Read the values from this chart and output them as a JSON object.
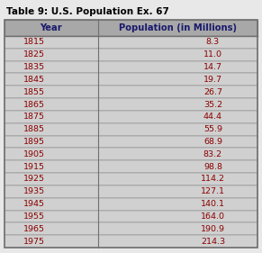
{
  "title": "Table 9: U.S. Population Ex. 67",
  "col1_header": "Year",
  "col2_header": "Population (in Millions)",
  "years": [
    1815,
    1825,
    1835,
    1845,
    1855,
    1865,
    1875,
    1885,
    1895,
    1905,
    1915,
    1925,
    1935,
    1945,
    1955,
    1965,
    1975
  ],
  "populations": [
    8.3,
    11.0,
    14.7,
    19.7,
    26.7,
    35.2,
    44.4,
    55.9,
    68.9,
    83.2,
    98.8,
    114.2,
    127.1,
    140.1,
    164.0,
    190.9,
    214.3
  ],
  "header_bg": "#a8a8a8",
  "row_bg": "#d0d0d0",
  "fig_bg": "#e8e8e8",
  "title_color": "#000000",
  "header_text_color": "#1a1a6e",
  "data_text_color": "#8B0000",
  "border_color": "#707070",
  "title_fontsize": 7.5,
  "header_fontsize": 7.2,
  "data_fontsize": 6.8,
  "col_split": 0.37,
  "figsize": [
    2.91,
    2.81
  ],
  "dpi": 100
}
